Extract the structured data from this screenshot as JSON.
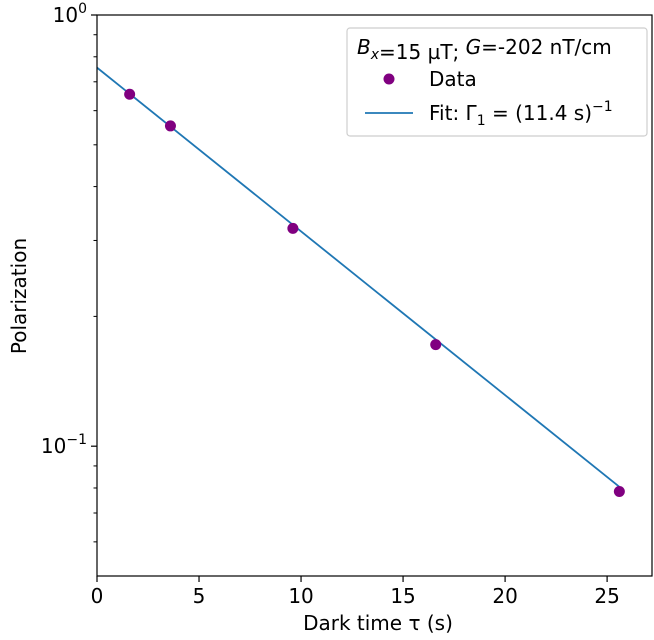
{
  "chart_data": {
    "type": "scatter",
    "xlabel": "Dark time τ (s)",
    "ylabel": "Polarization",
    "xlim": [
      0,
      27.2
    ],
    "ylim": [
      0.05,
      1.0
    ],
    "yscale": "log",
    "grid": false,
    "x_ticks": [
      0,
      5,
      10,
      15,
      20,
      25
    ],
    "x_tick_labels": [
      "0",
      "5",
      "10",
      "15",
      "20",
      "25"
    ],
    "y_major_ticks": [
      0.1,
      1.0
    ],
    "y_tick_labels": [
      "10",
      "10"
    ],
    "y_tick_exponents": [
      "−1",
      "0"
    ],
    "y_minor_ticks": [
      0.06,
      0.07,
      0.08,
      0.09,
      0.2,
      0.3,
      0.4,
      0.5,
      0.6,
      0.7,
      0.8,
      0.9
    ],
    "legend": {
      "placement": "top-right",
      "title": "Bx=15 µT; G=-202 nT/cm",
      "entries": [
        "Data",
        "Fit: Γ1 = (11.4 s)−1"
      ]
    },
    "series": [
      {
        "name": "Data",
        "kind": "scatter",
        "color": "#800080",
        "x": [
          1.6,
          3.6,
          9.6,
          16.6,
          25.6
        ],
        "y": [
          0.655,
          0.553,
          0.32,
          0.172,
          0.0785
        ]
      },
      {
        "name": "Fit: Γ1 = (11.4 s)−1",
        "kind": "line",
        "color": "#1f77b4",
        "x": [
          0,
          25.6
        ],
        "y": [
          0.755,
          0.0805
        ]
      }
    ]
  }
}
